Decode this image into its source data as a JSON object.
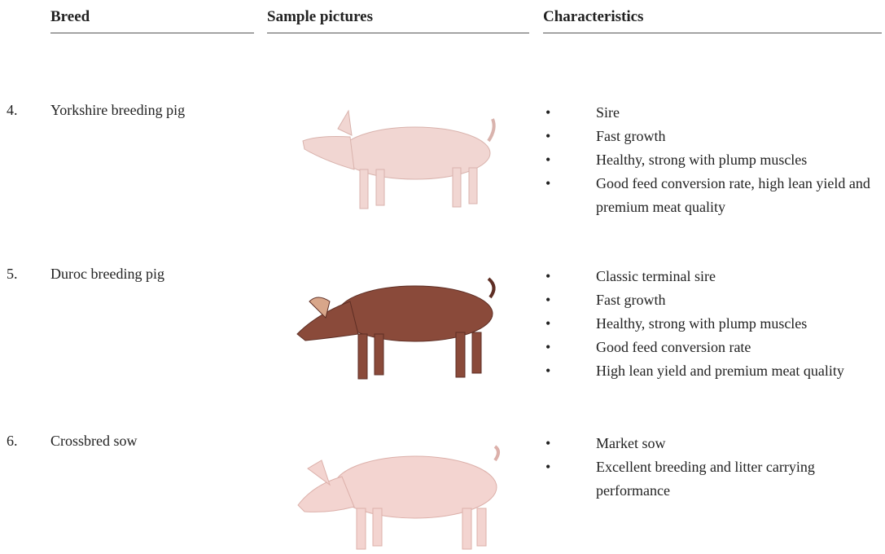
{
  "header": {
    "breed": "Breed",
    "pictures": "Sample pictures",
    "characteristics": "Characteristics"
  },
  "rows": [
    {
      "number": "4.",
      "breed": "Yorkshire breeding pig",
      "characteristics": [
        "Sire",
        "Fast growth",
        "Healthy, strong with plump muscles",
        "Good feed conversion rate, high lean yield and premium meat quality"
      ]
    },
    {
      "number": "5.",
      "breed": "Duroc breeding pig",
      "characteristics": [
        "Classic terminal sire",
        "Fast growth",
        "Healthy, strong with plump muscles",
        "Good feed conversion rate",
        "High lean yield and premium meat quality"
      ]
    },
    {
      "number": "6.",
      "breed": "Crossbred sow",
      "characteristics": [
        "Market sow",
        "Excellent breeding and litter carrying performance"
      ]
    }
  ]
}
